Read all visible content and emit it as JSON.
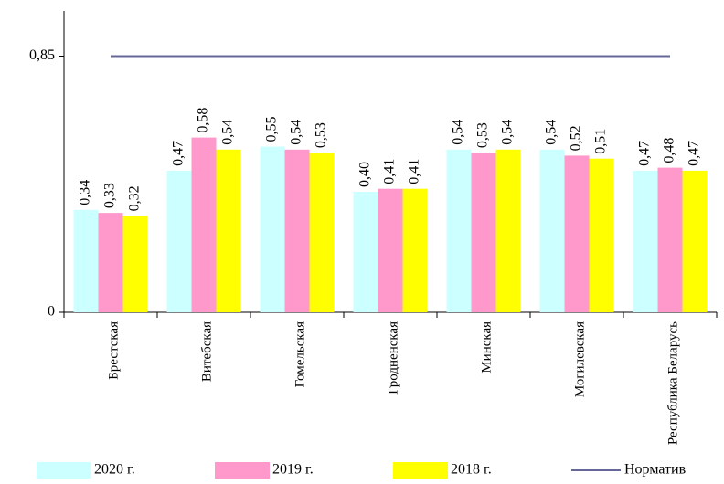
{
  "chart_data": {
    "type": "bar",
    "categories": [
      "Брестская",
      "Витебская",
      "Гомельская",
      "Гродненская",
      "Минская",
      "Могилевская",
      "Республика Беларусь"
    ],
    "series": [
      {
        "name": "2020 г.",
        "color": "#ccffff",
        "values": [
          0.34,
          0.47,
          0.55,
          0.4,
          0.54,
          0.54,
          0.47
        ],
        "value_labels": [
          "0,34",
          "0,47",
          "0,55",
          "0,40",
          "0,54",
          "0,54",
          "0,47"
        ]
      },
      {
        "name": "2019 г.",
        "color": "#ff99cc",
        "values": [
          0.33,
          0.58,
          0.54,
          0.41,
          0.53,
          0.52,
          0.48
        ],
        "value_labels": [
          "0,33",
          "0,58",
          "0,54",
          "0,41",
          "0,53",
          "0,52",
          "0,48"
        ]
      },
      {
        "name": "2018 г.",
        "color": "#ffff00",
        "values": [
          0.32,
          0.54,
          0.53,
          0.41,
          0.54,
          0.51,
          0.47
        ],
        "value_labels": [
          "0,32",
          "0,54",
          "0,53",
          "0,41",
          "0,54",
          "0,51",
          "0,47"
        ]
      },
      {
        "name": "Норматив",
        "type": "line",
        "color": "#666699",
        "values": [
          0.85,
          0.85,
          0.85,
          0.85,
          0.85,
          0.85,
          0.85
        ]
      }
    ],
    "ylim": [
      0,
      1
    ],
    "yticks": [
      0,
      {
        "value": 0.85,
        "label": "0,85"
      }
    ],
    "grid": false,
    "legend": "bottom"
  }
}
